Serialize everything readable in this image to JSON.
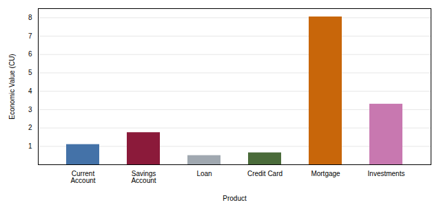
{
  "chart_data": {
    "type": "bar",
    "categories": [
      "Current\nAccount",
      "Savings\nAccount",
      "Loan",
      "Credit Card",
      "Mortgage",
      "Investments"
    ],
    "values": [
      1.1,
      1.75,
      0.5,
      0.65,
      8.05,
      3.3
    ],
    "colors": [
      "#4472a8",
      "#8b1a3a",
      "#a0a8b0",
      "#4a6b3a",
      "#c8660a",
      "#c878b0"
    ],
    "xlabel": "Product",
    "ylabel": "Economic Value (CU)",
    "ylim": [
      0,
      8.5
    ],
    "yticks": [
      1,
      2,
      3,
      4,
      5,
      6,
      7,
      8
    ],
    "grid": true
  }
}
